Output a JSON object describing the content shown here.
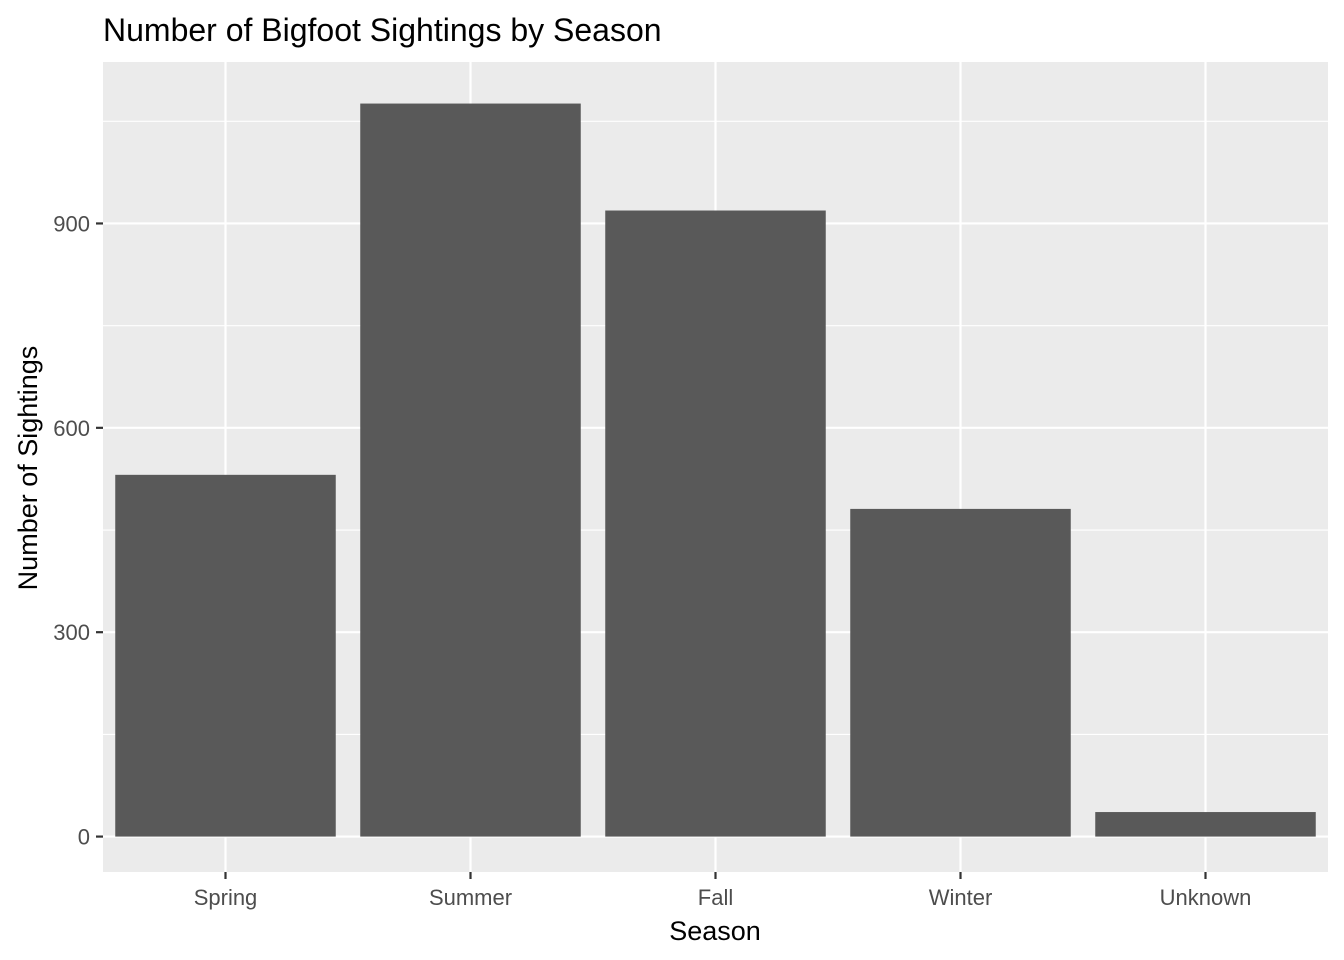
{
  "chart_data": {
    "type": "bar",
    "title": "Number of Bigfoot Sightings by Season",
    "xlabel": "Season",
    "ylabel": "Number of Sightings",
    "categories": [
      "Spring",
      "Summer",
      "Fall",
      "Winter",
      "Unknown"
    ],
    "values": [
      531,
      1076,
      919,
      481,
      36
    ],
    "ylim": [
      -52,
      1137
    ],
    "yticks": [
      0,
      300,
      600,
      900
    ],
    "yticks_minor": [
      150,
      450,
      750,
      1050
    ],
    "ytick_labels": [
      "0",
      "300",
      "600",
      "900"
    ],
    "grid": true,
    "legend": "none",
    "colors": {
      "bar": "#595959",
      "panel": "#ebebeb",
      "grid": "#ffffff",
      "tick_text": "#4d4d4d",
      "tick_mark": "#333333"
    }
  }
}
